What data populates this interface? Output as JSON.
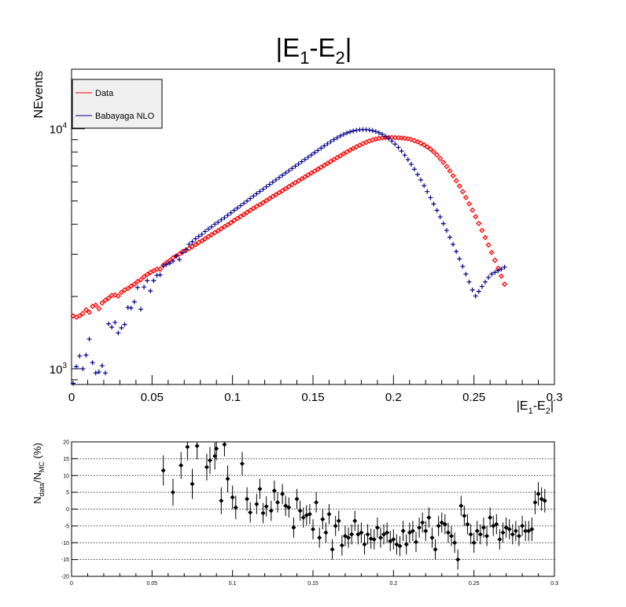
{
  "chart_data": [
    {
      "type": "scatter",
      "title": "|E1-E2|",
      "title_parts": {
        "main": "|E",
        "sub1": "1",
        "mid": "-E",
        "sub2": "2",
        "end": "|"
      },
      "xlabel": "|E1-E2|",
      "xlabel_parts": {
        "main": "|E",
        "sub1": "1",
        "mid": "-E",
        "sub2": "2",
        "end": "|"
      },
      "ylabel": "NEvents",
      "y_scale": "log",
      "xlim": [
        0,
        0.3
      ],
      "ylim": [
        860,
        17700
      ],
      "x_ticks": [
        "0",
        "0.05",
        "0.1",
        "0.15",
        "0.2",
        "0.25",
        "0.3"
      ],
      "y_ticks": [
        {
          "value": 1000,
          "base": "10",
          "exp": "3"
        },
        {
          "value": 10000,
          "base": "10",
          "exp": "4"
        }
      ],
      "grid": false,
      "legend_position": "top-left",
      "x_step": 0.002,
      "series": [
        {
          "name": "Data",
          "color": "#ff0000",
          "marker": "open-diamond",
          "y": [
            1660,
            1640,
            1660,
            1700,
            1760,
            1720,
            1820,
            1840,
            1780,
            1880,
            1930,
            1970,
            2020,
            2030,
            2010,
            2080,
            2130,
            2160,
            2210,
            2250,
            2310,
            2350,
            2420,
            2470,
            2520,
            2560,
            2600,
            2600,
            2700,
            2770,
            2820,
            2900,
            2950,
            3010,
            3080,
            3110,
            3170,
            3230,
            3290,
            3360,
            3410,
            3480,
            3550,
            3620,
            3690,
            3760,
            3830,
            3910,
            3980,
            4060,
            4150,
            4230,
            4310,
            4390,
            4480,
            4570,
            4660,
            4750,
            4830,
            4920,
            5020,
            5120,
            5220,
            5320,
            5420,
            5520,
            5630,
            5740,
            5850,
            5960,
            6070,
            6180,
            6300,
            6420,
            6540,
            6660,
            6780,
            6910,
            7040,
            7170,
            7300,
            7440,
            7580,
            7720,
            7860,
            8000,
            8140,
            8280,
            8410,
            8540,
            8660,
            8780,
            8890,
            8980,
            9060,
            9120,
            9160,
            9180,
            9190,
            9190,
            9180,
            9170,
            9150,
            9120,
            9080,
            9010,
            8920,
            8820,
            8700,
            8560,
            8400,
            8220,
            8010,
            7770,
            7510,
            7240,
            6960,
            6670,
            6370,
            6070,
            5770,
            5470,
            5170,
            4870,
            4580,
            4300,
            4030,
            3770,
            3520,
            3280,
            3050,
            2830,
            2620,
            2430,
            2250
          ]
        },
        {
          "name": "Babayaga NLO",
          "color": "#00008b",
          "marker": "plus",
          "y": [
            870,
            1020,
            1130,
            1000,
            1140,
            1330,
            1060,
            960,
            970,
            1030,
            960,
            1540,
            1490,
            1560,
            1410,
            1480,
            1530,
            1800,
            1790,
            1900,
            2180,
            1770,
            2190,
            2330,
            2110,
            2330,
            2450,
            2460,
            2680,
            2720,
            2750,
            2810,
            2950,
            2850,
            3040,
            3140,
            3300,
            3380,
            3480,
            3560,
            3630,
            3730,
            3820,
            3900,
            4000,
            4080,
            4170,
            4260,
            4360,
            4460,
            4570,
            4670,
            4780,
            4890,
            5000,
            5120,
            5240,
            5360,
            5480,
            5600,
            5730,
            5860,
            5990,
            6120,
            6260,
            6400,
            6540,
            6680,
            6830,
            6980,
            7130,
            7290,
            7450,
            7610,
            7780,
            7950,
            8120,
            8300,
            8480,
            8650,
            8830,
            9010,
            9170,
            9330,
            9470,
            9600,
            9700,
            9790,
            9860,
            9900,
            9920,
            9910,
            9880,
            9820,
            9740,
            9620,
            9480,
            9300,
            9100,
            8880,
            8630,
            8360,
            8070,
            7760,
            7440,
            7110,
            6780,
            6450,
            6120,
            5790,
            5470,
            5160,
            4860,
            4570,
            4290,
            4020,
            3770,
            3530,
            3300,
            3080,
            2870,
            2670,
            2480,
            2300,
            2130,
            2010,
            2100,
            2200,
            2300,
            2400,
            2480,
            2520,
            2560,
            2600,
            2650
          ]
        }
      ]
    },
    {
      "type": "scatter",
      "ylabel": "Ndata/NMC (%)",
      "ylabel_parts": {
        "a": "N",
        "asub": "data",
        "b": "/N",
        "bsub": "MC",
        "c": " (%)"
      },
      "xlim": [
        0,
        0.3
      ],
      "ylim": [
        -20,
        20
      ],
      "x_ticks": [
        "0",
        "0.05",
        "0.1",
        "0.15",
        "0.2",
        "0.25",
        "0.3"
      ],
      "y_ticks": [
        "-20",
        "-15",
        "-10",
        "-5",
        "0",
        "5",
        "10",
        "15",
        "20"
      ],
      "grid": "horizontal dotted",
      "series": [
        {
          "name": "",
          "color": "#000000",
          "marker": "filled-diamond",
          "x": [
            0.057,
            0.063,
            0.068,
            0.072,
            0.075,
            0.078,
            0.084,
            0.086,
            0.089,
            0.09,
            0.093,
            0.095,
            0.097,
            0.1,
            0.102,
            0.106,
            0.109,
            0.111,
            0.115,
            0.117,
            0.119,
            0.121,
            0.124,
            0.126,
            0.128,
            0.131,
            0.133,
            0.135,
            0.138,
            0.14,
            0.142,
            0.144,
            0.146,
            0.148,
            0.15,
            0.152,
            0.154,
            0.156,
            0.158,
            0.16,
            0.162,
            0.164,
            0.166,
            0.168,
            0.17,
            0.172,
            0.174,
            0.176,
            0.178,
            0.18,
            0.182,
            0.184,
            0.186,
            0.188,
            0.19,
            0.192,
            0.194,
            0.196,
            0.198,
            0.2,
            0.202,
            0.204,
            0.206,
            0.208,
            0.21,
            0.212,
            0.214,
            0.216,
            0.218,
            0.22,
            0.222,
            0.224,
            0.226,
            0.228,
            0.23,
            0.232,
            0.234,
            0.236,
            0.238,
            0.24,
            0.242,
            0.244,
            0.246,
            0.248,
            0.25,
            0.252,
            0.254,
            0.256,
            0.258,
            0.26,
            0.262,
            0.264,
            0.266,
            0.268,
            0.27,
            0.272,
            0.274,
            0.276,
            0.278,
            0.28,
            0.282,
            0.284,
            0.286,
            0.288,
            0.29,
            0.292,
            0.294
          ],
          "y": [
            11.5,
            5.0,
            13.0,
            18.5,
            7.5,
            18.8,
            12.5,
            14.5,
            15.8,
            18.0,
            2.5,
            19.2,
            9.0,
            3.5,
            0.5,
            13.5,
            3.0,
            -1.0,
            1.5,
            6.0,
            -1.2,
            0.8,
            -0.5,
            5.5,
            2.0,
            4.5,
            1.0,
            0.5,
            -5.5,
            3.0,
            -0.5,
            -2.5,
            -1.8,
            -1.5,
            -6.0,
            2.0,
            -8.5,
            -3.0,
            -7.0,
            -1.5,
            -12.0,
            -5.0,
            -3.5,
            -10.8,
            -8.0,
            -8.5,
            -7.5,
            -3.5,
            -7.5,
            -7.0,
            -10.5,
            -7.5,
            -8.8,
            -9.0,
            -5.5,
            -8.5,
            -7.5,
            -7.0,
            -9.5,
            -9.0,
            -10.5,
            -11.0,
            -6.5,
            -10.5,
            -7.0,
            -6.5,
            -9.8,
            -5.5,
            -4.0,
            -6.5,
            -2.5,
            -8.5,
            -12.0,
            -5.0,
            -4.0,
            -4.5,
            -7.0,
            -8.0,
            -10.0,
            -15.0,
            1.0,
            -2.0,
            -4.5,
            -7.5,
            -10.0,
            -6.5,
            -7.5,
            -5.5,
            -8.0,
            -2.5,
            -5.0,
            -4.5,
            -9.0,
            -7.0,
            -5.5,
            -6.0,
            -7.5,
            -6.5,
            -8.0,
            -5.0,
            -6.5,
            -6.5,
            -6.0,
            2.0,
            4.5,
            3.0,
            2.5
          ],
          "err": [
            4.5,
            4.0,
            4.0,
            4.0,
            4.5,
            4.0,
            4.0,
            4.0,
            4.0,
            3.5,
            4.0,
            3.5,
            4.0,
            3.5,
            3.5,
            3.5,
            3.5,
            3.0,
            3.0,
            3.0,
            3.0,
            3.0,
            3.0,
            3.0,
            3.0,
            3.0,
            3.0,
            3.0,
            3.0,
            3.0,
            3.0,
            3.0,
            3.0,
            3.0,
            3.0,
            3.0,
            3.0,
            3.0,
            3.0,
            3.0,
            3.0,
            3.0,
            3.0,
            3.0,
            3.0,
            3.0,
            3.0,
            3.0,
            3.0,
            3.0,
            3.0,
            3.0,
            3.0,
            3.0,
            3.0,
            3.0,
            3.0,
            3.0,
            3.0,
            3.0,
            3.0,
            3.0,
            3.0,
            3.0,
            3.0,
            3.0,
            3.0,
            3.0,
            3.0,
            3.0,
            3.0,
            3.0,
            3.0,
            3.0,
            3.0,
            3.0,
            3.0,
            3.0,
            3.0,
            3.0,
            3.0,
            3.0,
            3.0,
            3.0,
            3.0,
            3.0,
            3.0,
            3.0,
            3.0,
            3.0,
            3.0,
            3.0,
            3.0,
            3.0,
            3.0,
            3.0,
            3.0,
            3.0,
            3.0,
            3.0,
            3.0,
            3.0,
            3.5,
            3.5,
            3.5,
            3.5,
            3.5
          ]
        }
      ]
    }
  ]
}
